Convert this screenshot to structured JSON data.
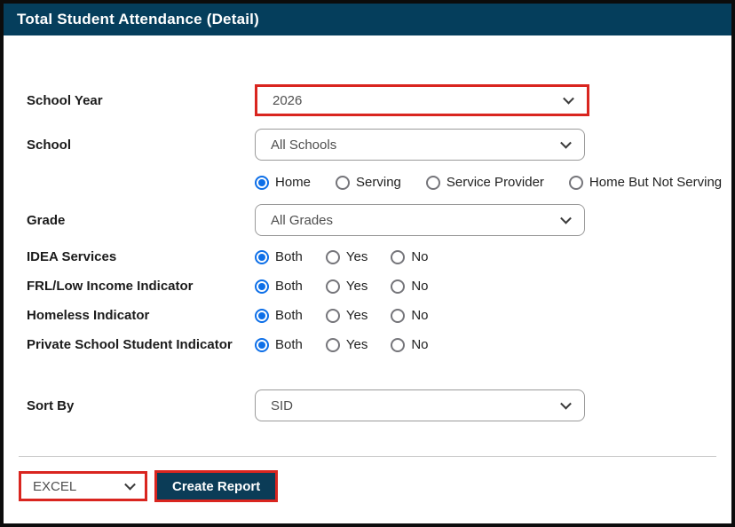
{
  "header": {
    "title": "Total Student Attendance (Detail)"
  },
  "form": {
    "school_year": {
      "label": "School Year",
      "value": "2026"
    },
    "school": {
      "label": "School",
      "value": "All Schools"
    },
    "school_type": {
      "options": [
        {
          "label": "Home",
          "selected": true
        },
        {
          "label": "Serving",
          "selected": false
        },
        {
          "label": "Service Provider",
          "selected": false
        },
        {
          "label": "Home But Not Serving",
          "selected": false
        }
      ]
    },
    "grade": {
      "label": "Grade",
      "value": "All Grades"
    },
    "indicators": [
      {
        "label": "IDEA Services",
        "options": [
          {
            "label": "Both",
            "selected": true
          },
          {
            "label": "Yes",
            "selected": false
          },
          {
            "label": "No",
            "selected": false
          }
        ]
      },
      {
        "label": "FRL/Low Income Indicator",
        "options": [
          {
            "label": "Both",
            "selected": true
          },
          {
            "label": "Yes",
            "selected": false
          },
          {
            "label": "No",
            "selected": false
          }
        ]
      },
      {
        "label": "Homeless Indicator",
        "options": [
          {
            "label": "Both",
            "selected": true
          },
          {
            "label": "Yes",
            "selected": false
          },
          {
            "label": "No",
            "selected": false
          }
        ]
      },
      {
        "label": "Private School Student Indicator",
        "options": [
          {
            "label": "Both",
            "selected": true
          },
          {
            "label": "Yes",
            "selected": false
          },
          {
            "label": "No",
            "selected": false
          }
        ]
      }
    ],
    "sort_by": {
      "label": "Sort By",
      "value": "SID"
    }
  },
  "footer": {
    "export_format": {
      "value": "EXCEL"
    },
    "create_report_label": "Create Report"
  },
  "colors": {
    "header_bg": "#053e5c",
    "annotation_red": "#d9251f",
    "radio_selected_blue": "#0d6fe8",
    "button_bg": "#0b3c57"
  },
  "icons": {
    "chevron_down": "⌄"
  }
}
